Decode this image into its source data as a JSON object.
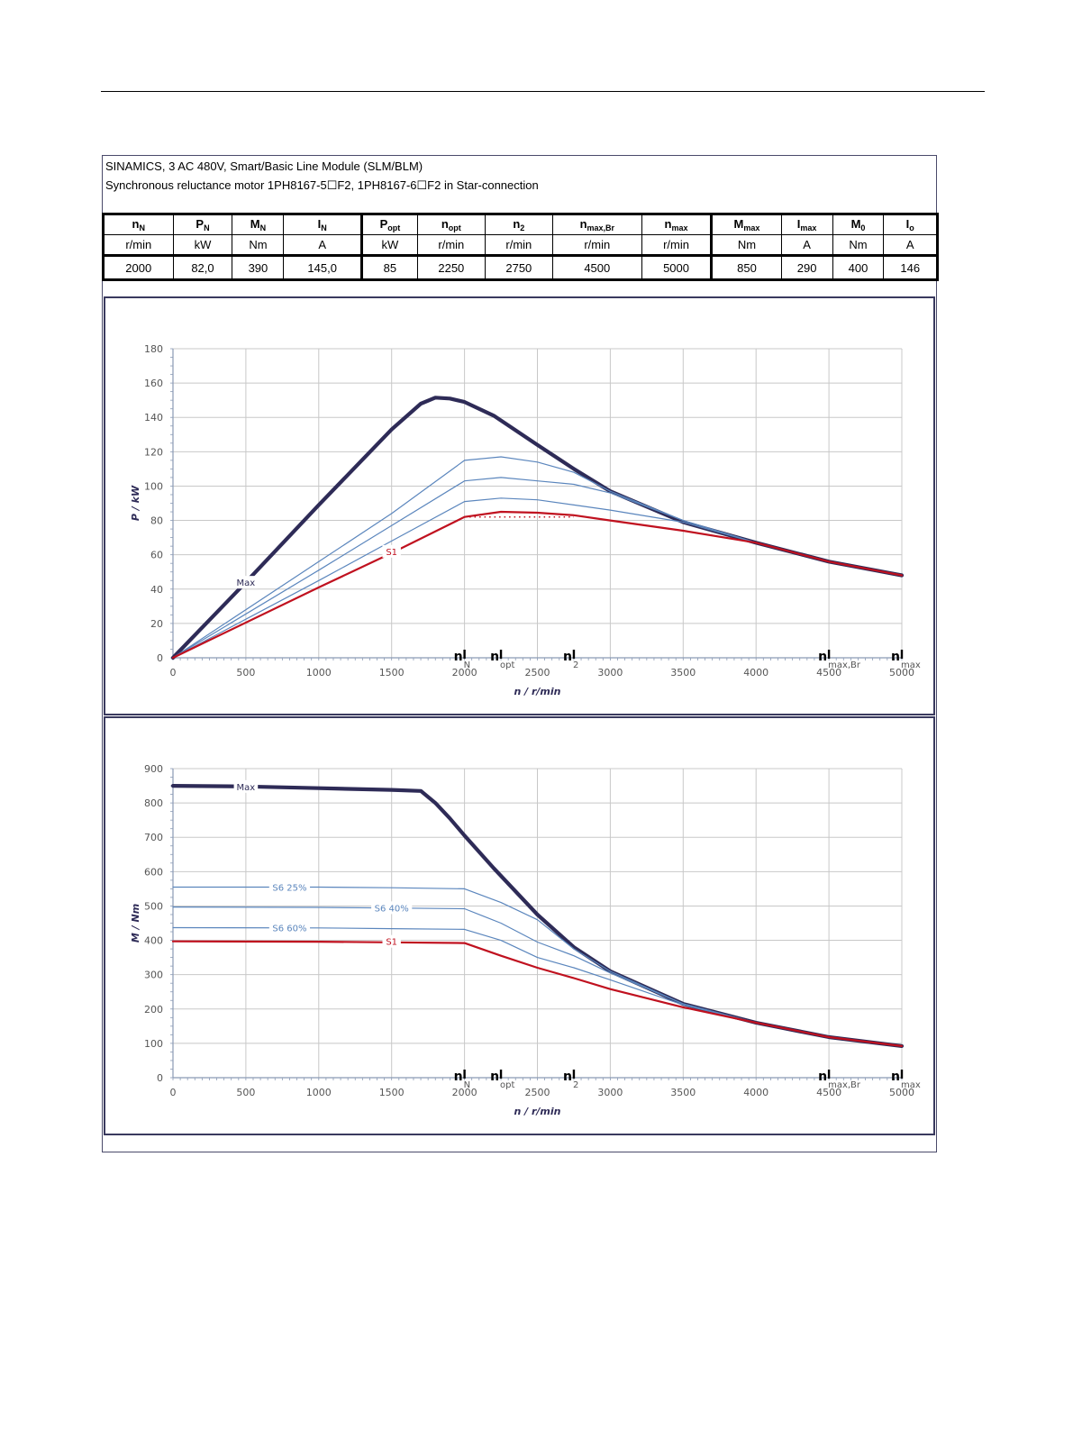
{
  "header": {
    "line1": "SINAMICS, 3 AC 480V, Smart/Basic Line Module (SLM/BLM)",
    "line2": "Synchronous reluctance motor  1PH8167-5☐F2,  1PH8167-6☐F2   in Star-connection"
  },
  "spec_table": {
    "columns": [
      {
        "sym": "n",
        "sub": "N",
        "unit": "r/min",
        "value": "2000"
      },
      {
        "sym": "P",
        "sub": "N",
        "unit": "kW",
        "value": "82,0"
      },
      {
        "sym": "M",
        "sub": "N",
        "unit": "Nm",
        "value": "390"
      },
      {
        "sym": "I",
        "sub": "N",
        "unit": "A",
        "value": "145,0"
      },
      {
        "sym": "P",
        "sub": "opt",
        "unit": "kW",
        "value": "85"
      },
      {
        "sym": "n",
        "sub": "opt",
        "unit": "r/min",
        "value": "2250"
      },
      {
        "sym": "n",
        "sub": "2",
        "unit": "r/min",
        "value": "2750"
      },
      {
        "sym": "n",
        "sub": "max,Br",
        "unit": "r/min",
        "value": "4500"
      },
      {
        "sym": "n",
        "sub": "max",
        "unit": "r/min",
        "value": "5000"
      },
      {
        "sym": "M",
        "sub": "max",
        "unit": "Nm",
        "value": "850"
      },
      {
        "sym": "I",
        "sub": "max",
        "unit": "A",
        "value": "290"
      },
      {
        "sym": "M",
        "sub": "0",
        "unit": "Nm",
        "value": "400"
      },
      {
        "sym": "I",
        "sub": "o",
        "unit": "A",
        "value": "146"
      }
    ]
  },
  "colors": {
    "max": "#2e2b57",
    "s1": "#c0111f",
    "s6": "#5b86bd",
    "grid": "#c8c8c8",
    "axis": "#8a9ab5"
  },
  "chart_data": [
    {
      "type": "line",
      "title": "",
      "xlabel": "n / r/min",
      "ylabel": "P / kW",
      "xlim": [
        0,
        5000
      ],
      "ylim": [
        0,
        180
      ],
      "x_ticks": [
        0,
        500,
        1000,
        1500,
        2000,
        2500,
        3000,
        3500,
        4000,
        4500,
        5000
      ],
      "y_ticks": [
        0,
        20,
        40,
        60,
        80,
        100,
        120,
        140,
        160,
        180
      ],
      "grid": true,
      "speed_markers": [
        {
          "x": 2000,
          "base": "n",
          "sub": "N"
        },
        {
          "x": 2250,
          "base": "n",
          "sub": "opt"
        },
        {
          "x": 2750,
          "base": "n",
          "sub": "2"
        },
        {
          "x": 4500,
          "base": "n",
          "sub": "max,Br"
        },
        {
          "x": 5000,
          "base": "n",
          "sub": "max"
        }
      ],
      "series": [
        {
          "name": "Max",
          "style": "max",
          "label_at": [
            500,
            44
          ],
          "points": [
            [
              0,
              0
            ],
            [
              500,
              44
            ],
            [
              1000,
              89
            ],
            [
              1500,
              133
            ],
            [
              1700,
              148
            ],
            [
              1800,
              151.5
            ],
            [
              1900,
              151
            ],
            [
              2000,
              149
            ],
            [
              2200,
              141
            ],
            [
              2500,
              124
            ],
            [
              2750,
              110
            ],
            [
              3000,
              97
            ],
            [
              3500,
              79
            ],
            [
              4000,
              67
            ],
            [
              4500,
              56
            ],
            [
              5000,
              48
            ]
          ]
        },
        {
          "name": "",
          "style": "s6",
          "points": [
            [
              0,
              0
            ],
            [
              1000,
              56
            ],
            [
              1500,
              84
            ],
            [
              2000,
              115
            ],
            [
              2250,
              117
            ],
            [
              2500,
              114
            ],
            [
              2750,
              108
            ],
            [
              3000,
              97
            ],
            [
              3500,
              80
            ],
            [
              4000,
              67
            ],
            [
              4500,
              56
            ],
            [
              5000,
              48
            ]
          ]
        },
        {
          "name": "",
          "style": "s6",
          "points": [
            [
              0,
              0
            ],
            [
              1000,
              51
            ],
            [
              1500,
              77
            ],
            [
              2000,
              103
            ],
            [
              2250,
              105
            ],
            [
              2500,
              103
            ],
            [
              2750,
              101
            ],
            [
              3000,
              96
            ],
            [
              3500,
              80
            ],
            [
              4000,
              67
            ],
            [
              4500,
              56
            ],
            [
              5000,
              48
            ]
          ]
        },
        {
          "name": "",
          "style": "s6",
          "points": [
            [
              0,
              0
            ],
            [
              1000,
              45
            ],
            [
              1500,
              68
            ],
            [
              2000,
              91
            ],
            [
              2250,
              93
            ],
            [
              2500,
              92
            ],
            [
              2750,
              89
            ],
            [
              3000,
              86
            ],
            [
              3500,
              79
            ],
            [
              4000,
              67
            ],
            [
              4500,
              56
            ],
            [
              5000,
              48
            ]
          ]
        },
        {
          "name": "S1",
          "style": "s1",
          "label_at": [
            1500,
            62
          ],
          "points": [
            [
              0,
              0
            ],
            [
              1000,
              41
            ],
            [
              1500,
              61
            ],
            [
              2000,
              82
            ],
            [
              2250,
              85
            ],
            [
              2500,
              84.5
            ],
            [
              2750,
              83
            ],
            [
              3000,
              80
            ],
            [
              3500,
              74
            ],
            [
              4000,
              67
            ],
            [
              4500,
              56
            ],
            [
              5000,
              48
            ]
          ]
        }
      ],
      "dotted_line": {
        "x": [
          2000,
          2750
        ],
        "y": 82
      }
    },
    {
      "type": "line",
      "title": "",
      "xlabel": "n / r/min",
      "ylabel": "M / Nm",
      "xlim": [
        0,
        5000
      ],
      "ylim": [
        0,
        900
      ],
      "x_ticks": [
        0,
        500,
        1000,
        1500,
        2000,
        2500,
        3000,
        3500,
        4000,
        4500,
        5000
      ],
      "y_ticks": [
        0,
        100,
        200,
        300,
        400,
        500,
        600,
        700,
        800,
        900
      ],
      "grid": true,
      "speed_markers": [
        {
          "x": 2000,
          "base": "n",
          "sub": "N"
        },
        {
          "x": 2250,
          "base": "n",
          "sub": "opt"
        },
        {
          "x": 2750,
          "base": "n",
          "sub": "2"
        },
        {
          "x": 4500,
          "base": "n",
          "sub": "max,Br"
        },
        {
          "x": 5000,
          "base": "n",
          "sub": "max"
        }
      ],
      "series": [
        {
          "name": "Max",
          "style": "max",
          "label_at": [
            500,
            848
          ],
          "points": [
            [
              0,
              850
            ],
            [
              500,
              848
            ],
            [
              1000,
              843
            ],
            [
              1500,
              838
            ],
            [
              1700,
              835
            ],
            [
              1800,
              800
            ],
            [
              1900,
              755
            ],
            [
              2000,
              705
            ],
            [
              2200,
              610
            ],
            [
              2500,
              475
            ],
            [
              2750,
              380
            ],
            [
              3000,
              310
            ],
            [
              3500,
              215
            ],
            [
              4000,
              160
            ],
            [
              4500,
              118
            ],
            [
              5000,
              92
            ]
          ]
        },
        {
          "name": "S6 25%",
          "style": "s6",
          "label_at": [
            800,
            555
          ],
          "points": [
            [
              0,
              555
            ],
            [
              1000,
              555
            ],
            [
              1500,
              553
            ],
            [
              2000,
              550
            ],
            [
              2250,
              510
            ],
            [
              2500,
              460
            ],
            [
              2750,
              375
            ],
            [
              3000,
              310
            ],
            [
              3500,
              215
            ],
            [
              4000,
              160
            ],
            [
              4500,
              118
            ],
            [
              5000,
              92
            ]
          ]
        },
        {
          "name": "S6 40%",
          "style": "s6",
          "label_at": [
            1500,
            495
          ],
          "points": [
            [
              0,
              497
            ],
            [
              1000,
              496
            ],
            [
              1500,
              494
            ],
            [
              2000,
              492
            ],
            [
              2250,
              450
            ],
            [
              2500,
              395
            ],
            [
              2750,
              355
            ],
            [
              3000,
              305
            ],
            [
              3500,
              215
            ],
            [
              4000,
              160
            ],
            [
              4500,
              118
            ],
            [
              5000,
              92
            ]
          ]
        },
        {
          "name": "S6 60%",
          "style": "s6",
          "label_at": [
            800,
            437
          ],
          "points": [
            [
              0,
              437
            ],
            [
              1000,
              436
            ],
            [
              1500,
              434
            ],
            [
              2000,
              432
            ],
            [
              2250,
              400
            ],
            [
              2500,
              350
            ],
            [
              2750,
              320
            ],
            [
              3000,
              285
            ],
            [
              3500,
              212
            ],
            [
              4000,
              160
            ],
            [
              4500,
              118
            ],
            [
              5000,
              92
            ]
          ]
        },
        {
          "name": "S1",
          "style": "s1",
          "label_at": [
            1500,
            397
          ],
          "points": [
            [
              0,
              397
            ],
            [
              1000,
              396
            ],
            [
              1500,
              394
            ],
            [
              2000,
              392
            ],
            [
              2250,
              355
            ],
            [
              2500,
              320
            ],
            [
              2750,
              290
            ],
            [
              3000,
              258
            ],
            [
              3500,
              205
            ],
            [
              4000,
              160
            ],
            [
              4500,
              118
            ],
            [
              5000,
              92
            ]
          ]
        }
      ]
    }
  ]
}
